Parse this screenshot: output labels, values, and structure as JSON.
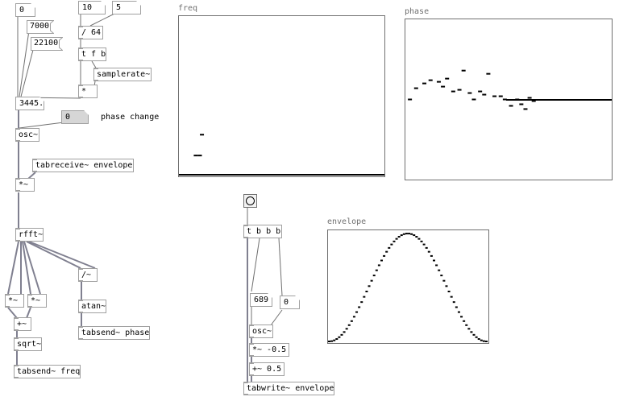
{
  "numbers": {
    "n0": "0",
    "n10": "10",
    "n5": "5",
    "n3445": "3445.",
    "nphase": "0",
    "n689": "689",
    "n0b": "0"
  },
  "messages": {
    "m7000": "7000",
    "m22100": "22100"
  },
  "objects": {
    "div64": "/ 64",
    "tfb": "t f b",
    "samplerate": "samplerate~",
    "mul": "*",
    "osc": "osc~",
    "tabreceive": "tabreceive~ envelope",
    "mult": "*~",
    "rfft": "rfft~",
    "mulA": "*~",
    "mulB": "*~",
    "divt": "/~",
    "add": "+~",
    "atan": "atan~",
    "sqrt": "sqrt~",
    "tabsendPhase": "tabsend~ phase",
    "tabsendFreq": "tabsend~ freq",
    "tbbb": "t b b b",
    "osc2": "osc~",
    "mulNeg": "*~ -0.5",
    "addHalf": "+~ 0.5",
    "tabwrite": "tabwrite~ envelope"
  },
  "comments": {
    "phaseChange": "phase change"
  },
  "graphs": {
    "freq": "freq",
    "phase": "phase",
    "envelope": "envelope"
  },
  "graph_values": {
    "freq_points": [
      [
        0.11,
        0.26
      ],
      [
        0.08,
        0.13
      ],
      [
        0.1,
        0.13
      ]
    ],
    "phase_points": [
      [
        0.02,
        0.5
      ],
      [
        0.05,
        0.57
      ],
      [
        0.09,
        0.6
      ],
      [
        0.12,
        0.62
      ],
      [
        0.16,
        0.61
      ],
      [
        0.18,
        0.58
      ],
      [
        0.2,
        0.63
      ],
      [
        0.23,
        0.55
      ],
      [
        0.26,
        0.56
      ],
      [
        0.28,
        0.68
      ],
      [
        0.31,
        0.54
      ],
      [
        0.33,
        0.5
      ],
      [
        0.36,
        0.55
      ],
      [
        0.38,
        0.53
      ],
      [
        0.4,
        0.66
      ],
      [
        0.43,
        0.52
      ],
      [
        0.46,
        0.52
      ],
      [
        0.48,
        0.5
      ],
      [
        0.51,
        0.46
      ],
      [
        0.54,
        0.5
      ],
      [
        0.56,
        0.47
      ],
      [
        0.58,
        0.44
      ],
      [
        0.6,
        0.51
      ],
      [
        0.62,
        0.49
      ]
    ],
    "phase_flat_level": 0.5
  },
  "colors": {
    "box_border": "#a0a0a0",
    "wire_control": "#707070",
    "wire_signal": "#808090",
    "graph_border": "#707070"
  }
}
